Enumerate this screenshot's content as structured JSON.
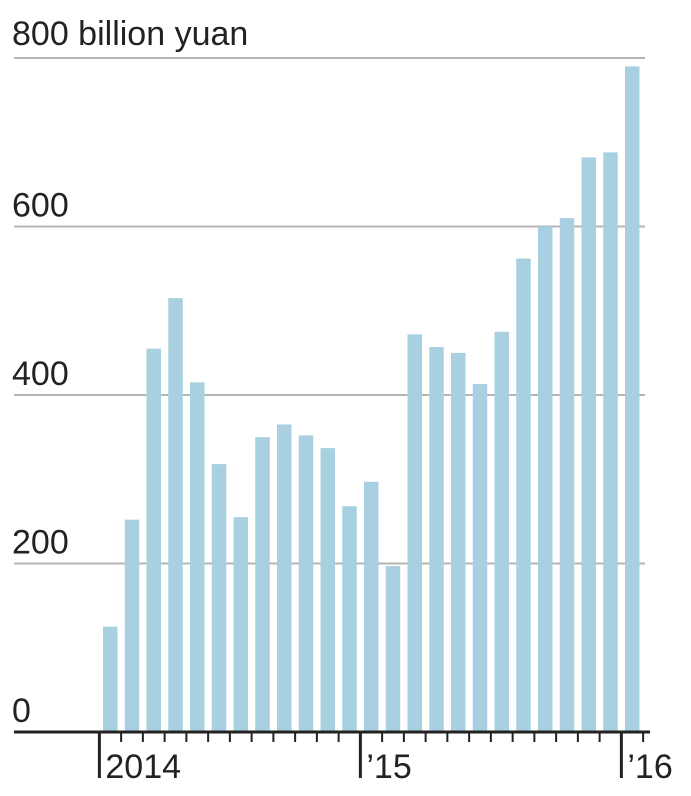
{
  "chart_data": {
    "type": "bar",
    "title": "",
    "ylabel": "",
    "xlabel": "",
    "y_unit_label": "800 billion yuan",
    "ylim": [
      0,
      800
    ],
    "yticks": [
      0,
      200,
      400,
      600,
      800
    ],
    "ytick_labels": [
      "0",
      "200",
      "400",
      "600",
      ""
    ],
    "categories": [
      "2014-01",
      "2014-02",
      "2014-03",
      "2014-04",
      "2014-05",
      "2014-06",
      "2014-07",
      "2014-08",
      "2014-09",
      "2014-10",
      "2014-11",
      "2014-12",
      "2015-01",
      "2015-02",
      "2015-03",
      "2015-04",
      "2015-05",
      "2015-06",
      "2015-07",
      "2015-08",
      "2015-09",
      "2015-10",
      "2015-11",
      "2015-12",
      "2016-01",
      "2016-02"
    ],
    "values": [
      125,
      252,
      455,
      515,
      415,
      318,
      255,
      350,
      365,
      352,
      337,
      268,
      297,
      197,
      472,
      457,
      450,
      413,
      475,
      562,
      600,
      610,
      682,
      688,
      790,
      0
    ],
    "x_tick_labels": [
      {
        "label": "2014",
        "category": "2014-01"
      },
      {
        "label": "’15",
        "category": "2015-01"
      },
      {
        "label": "’16",
        "category": "2016-01"
      }
    ],
    "grid": true,
    "colors": {
      "bar": "#a9d0e0",
      "grid": "#b5b5b5",
      "axis": "#222222",
      "text": "#222222"
    }
  }
}
